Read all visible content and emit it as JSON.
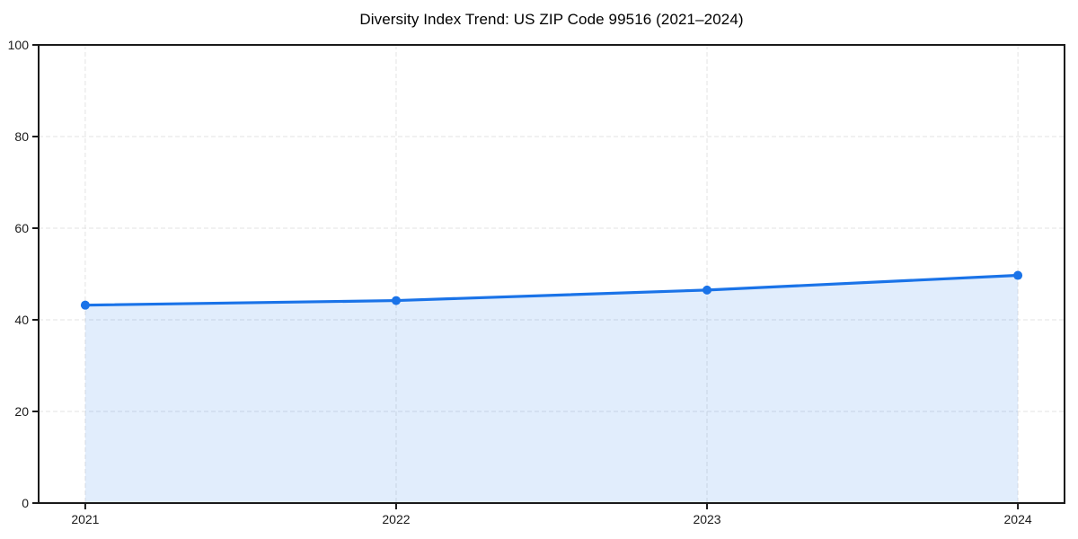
{
  "figure": {
    "background": "#ffffff"
  },
  "chart_data": {
    "type": "area",
    "title": "Diversity Index Trend: US ZIP Code 99516 (2021–2024)",
    "categories": [
      "2021",
      "2022",
      "2023",
      "2024"
    ],
    "x": [
      2021,
      2022,
      2023,
      2024
    ],
    "series": [
      {
        "name": "Diversity Index",
        "values": [
          43.2,
          44.2,
          46.5,
          49.7
        ]
      }
    ],
    "xlabel": "",
    "ylabel": "",
    "ylim": [
      0,
      100
    ],
    "yticks": [
      0,
      20,
      40,
      60,
      80,
      100
    ],
    "grid": true,
    "grid_style": "dashed",
    "legend": "none",
    "colors": {
      "line": "#1a73e8",
      "marker": "#1a73e8",
      "fill": "#1a73e8",
      "fill_opacity": 0.13,
      "grid": "#e3e3e3",
      "axis": "#1a1a1a",
      "background": "#ffffff"
    }
  }
}
